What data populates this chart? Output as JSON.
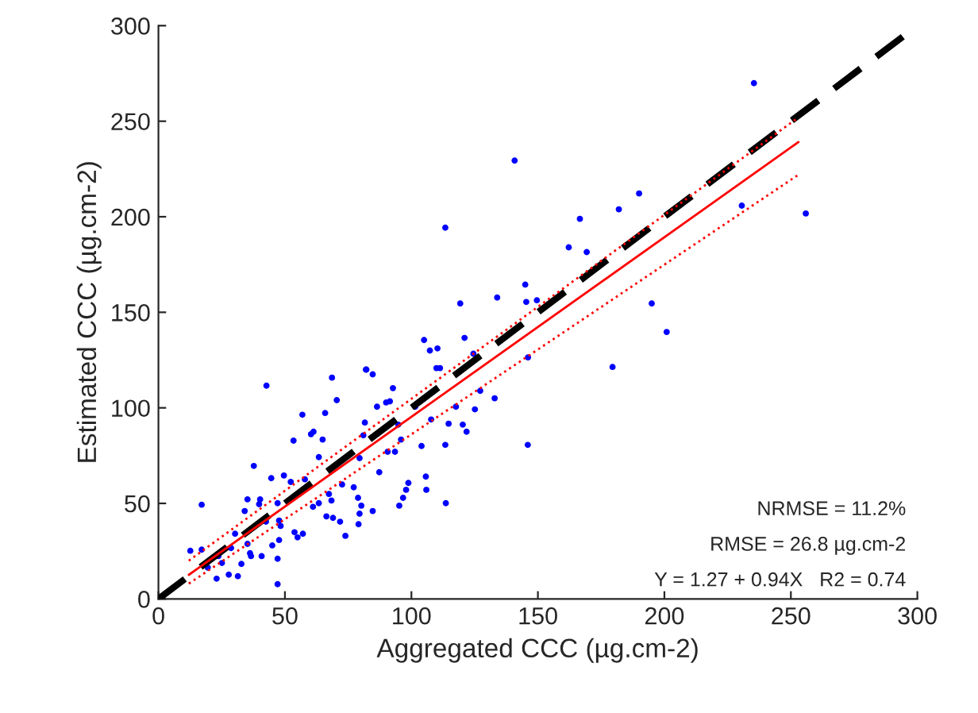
{
  "chart_data": {
    "type": "scatter",
    "xlabel": "Aggregated CCC (µg.cm-2)",
    "ylabel": "Estimated CCC (µg.cm-2)",
    "xlim": [
      0,
      300
    ],
    "ylim": [
      0,
      300
    ],
    "xticks": [
      0,
      50,
      100,
      150,
      200,
      250,
      300
    ],
    "yticks": [
      0,
      50,
      100,
      150,
      200,
      250,
      300
    ],
    "grid": false,
    "legend": false,
    "annotations": [
      "NRMSE = 11.2%",
      "RMSE = 26.8 µg.cm-2",
      "Y = 1.27 + 0.94X   R2 = 0.74"
    ],
    "series": [
      {
        "color": "#0000ff",
        "marker": "circle",
        "x": [
          17.1,
          42.7,
          68.6,
          82.2,
          84.7,
          70.5,
          56.9,
          65.9,
          90,
          86.4,
          60.3,
          61.3,
          53.4,
          64.9,
          81.6,
          81,
          63.4,
          37.7,
          44.6,
          49.6,
          52.3,
          57.9,
          35.2,
          40.2,
          39.8,
          47.1,
          67.4,
          68.4,
          63.4,
          61.1,
          78.9,
          80.2,
          77.2,
          87.3,
          84.7,
          34.1,
          42.5,
          47.7,
          48.3,
          66.4,
          69,
          71.8,
          79.1,
          53.8,
          57.1,
          55,
          73.9,
          30.3,
          28.7,
          35.2,
          36.2,
          45,
          47.7,
          12.6,
          17.1,
          23.7,
          25.1,
          19.5,
          23,
          27.8,
          31.4,
          36.6,
          40.8,
          47.1,
          32.8,
          47.1,
          133.9,
          119.3,
          105,
          107.3,
          110.3,
          121,
          124.5,
          109.9,
          111.3,
          82,
          92.7,
          91.5,
          101.5,
          117.6,
          127.2,
          125.1,
          132.9,
          107.8,
          114.7,
          120.3,
          121.8,
          94.8,
          95.9,
          104,
          113.4,
          90.6,
          93.5,
          79.5,
          105.7,
          105.9,
          98.8,
          97.9,
          96.7,
          95.2,
          113.6,
          72.6,
          79.5,
          140.8,
          113.4,
          190,
          182,
          166.6,
          162.2,
          169.3,
          145,
          145.4,
          149.6,
          195,
          200.9,
          146.1,
          179.5,
          146,
          235.4,
          230.6,
          255.9
        ],
        "values": [
          49.3,
          111.6,
          115.8,
          120,
          117.5,
          104,
          96.4,
          97.3,
          102.8,
          100.6,
          86.2,
          87.5,
          82.8,
          83.4,
          92.3,
          85.6,
          74.2,
          69.6,
          63.2,
          64.6,
          61.2,
          62.6,
          52.1,
          52.1,
          49.6,
          50.1,
          54.9,
          51.5,
          50.1,
          48.2,
          52.9,
          48.8,
          58.4,
          66.3,
          46,
          46,
          40.4,
          41,
          38.2,
          43.2,
          42.4,
          40.4,
          39.1,
          34.9,
          34.1,
          32.2,
          33,
          34.1,
          26.6,
          28.8,
          23.9,
          28,
          30.8,
          25.2,
          25.8,
          22.4,
          18.8,
          16.4,
          10.6,
          12.7,
          11.9,
          22.4,
          22.4,
          21,
          18.3,
          7.7,
          157.7,
          154.6,
          135.5,
          130,
          131.1,
          136.6,
          128.3,
          120.8,
          120.8,
          120,
          110.3,
          103.4,
          100.6,
          100.6,
          108.9,
          99.2,
          105,
          93.9,
          91.7,
          91.2,
          87.5,
          91.2,
          83.4,
          80,
          80.6,
          77,
          77,
          73.7,
          64,
          57.1,
          60.7,
          57.1,
          52.9,
          48.8,
          50.1,
          59.9,
          44.6,
          229.4,
          194.3,
          212.2,
          203.9,
          198.9,
          184,
          181.5,
          164.5,
          155.4,
          156.3,
          154.6,
          139.7,
          126.4,
          121.4,
          80.6,
          269.9,
          205.8,
          201.7
        ]
      },
      {
        "type": "line",
        "color": "#000000",
        "line_style": "dashed",
        "x": [
          0,
          300
        ],
        "values": [
          0,
          300
        ]
      },
      {
        "type": "line",
        "color": "#ff0000",
        "line_style": "solid",
        "x": [
          12,
          253
        ],
        "values": [
          12.6,
          239.1
        ]
      },
      {
        "type": "line",
        "color": "#ff0000",
        "line_style": "dotted",
        "x": [
          12,
          253
        ],
        "values": [
          20,
          252
        ]
      },
      {
        "type": "line",
        "color": "#ff0000",
        "line_style": "dotted",
        "x": [
          12,
          253
        ],
        "values": [
          8,
          222
        ]
      }
    ]
  }
}
